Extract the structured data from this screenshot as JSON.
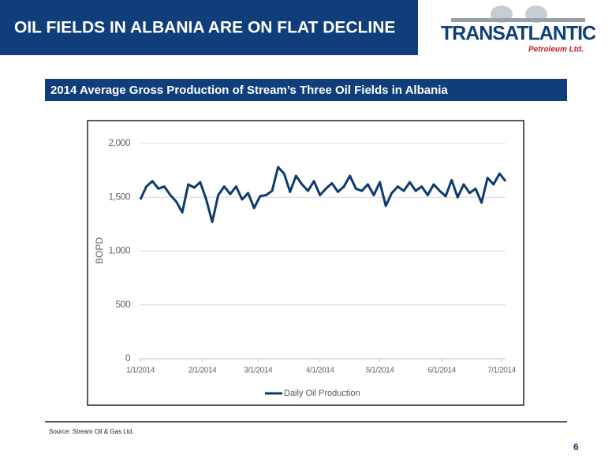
{
  "header": {
    "title": "OIL FIELDS IN ALBANIA ARE ON FLAT DECLINE"
  },
  "logo": {
    "name": "TRANSATLANTIC",
    "tagline": "Petroleum Ltd."
  },
  "chart_data": {
    "type": "line",
    "title": "2014 Average Gross Production of Stream’s Three Oil Fields in Albania",
    "y_label": "BOPD",
    "x": [
      "2014-01-01",
      "2014-01-04",
      "2014-01-07",
      "2014-01-10",
      "2014-01-13",
      "2014-01-16",
      "2014-01-19",
      "2014-01-22",
      "2014-01-25",
      "2014-01-28",
      "2014-01-31",
      "2014-02-03",
      "2014-02-06",
      "2014-02-09",
      "2014-02-12",
      "2014-02-15",
      "2014-02-18",
      "2014-02-21",
      "2014-02-24",
      "2014-02-27",
      "2014-03-02",
      "2014-03-05",
      "2014-03-08",
      "2014-03-11",
      "2014-03-14",
      "2014-03-17",
      "2014-03-20",
      "2014-03-23",
      "2014-03-26",
      "2014-03-29",
      "2014-04-01",
      "2014-04-04",
      "2014-04-07",
      "2014-04-10",
      "2014-04-13",
      "2014-04-16",
      "2014-04-19",
      "2014-04-22",
      "2014-04-25",
      "2014-04-28",
      "2014-05-01",
      "2014-05-04",
      "2014-05-07",
      "2014-05-10",
      "2014-05-13",
      "2014-05-16",
      "2014-05-19",
      "2014-05-22",
      "2014-05-25",
      "2014-05-28",
      "2014-05-31",
      "2014-06-03",
      "2014-06-06",
      "2014-06-09",
      "2014-06-12",
      "2014-06-15",
      "2014-06-18",
      "2014-06-21",
      "2014-06-24",
      "2014-06-27",
      "2014-06-30",
      "2014-07-03"
    ],
    "series": [
      {
        "name": "Daily Oil Production",
        "color": "#0d3b6e",
        "values": [
          1480,
          1600,
          1650,
          1580,
          1600,
          1520,
          1460,
          1360,
          1620,
          1590,
          1640,
          1480,
          1270,
          1520,
          1600,
          1530,
          1600,
          1480,
          1540,
          1400,
          1510,
          1520,
          1560,
          1780,
          1720,
          1550,
          1700,
          1620,
          1560,
          1650,
          1520,
          1580,
          1630,
          1550,
          1600,
          1700,
          1580,
          1560,
          1620,
          1520,
          1640,
          1420,
          1540,
          1600,
          1560,
          1640,
          1560,
          1600,
          1520,
          1620,
          1560,
          1510,
          1660,
          1500,
          1620,
          1540,
          1580,
          1450,
          1680,
          1620,
          1720,
          1650
        ]
      }
    ],
    "xlim": [
      "2014-01-01",
      "2014-07-03"
    ],
    "xticks": [
      {
        "value": "2014-01-01",
        "label": "1/1/2014"
      },
      {
        "value": "2014-02-01",
        "label": "2/1/2014"
      },
      {
        "value": "2014-03-01",
        "label": "3/1/2014"
      },
      {
        "value": "2014-04-01",
        "label": "4/1/2014"
      },
      {
        "value": "2014-05-01",
        "label": "5/1/2014"
      },
      {
        "value": "2014-06-01",
        "label": "6/1/2014"
      },
      {
        "value": "2014-07-01",
        "label": "7/1/2014"
      }
    ],
    "ylim": [
      0,
      2000
    ],
    "yticks": [
      0,
      500,
      {
        "value": 1000,
        "label": "1,000"
      },
      {
        "value": 1500,
        "label": "1,500"
      },
      {
        "value": 2000,
        "label": "2,000"
      }
    ],
    "grid": true,
    "legend": "bottom"
  },
  "source": "Source: Stream Oil & Gas Ltd.",
  "page_number": "6"
}
